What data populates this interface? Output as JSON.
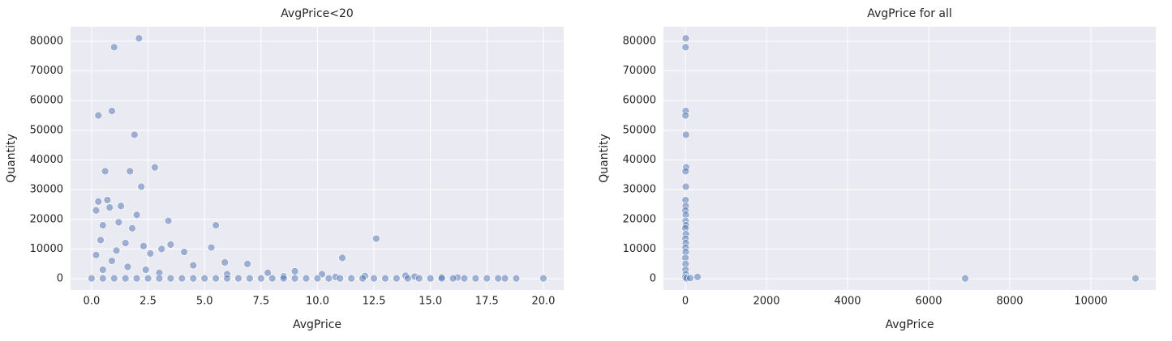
{
  "chart_data": [
    {
      "type": "scatter",
      "title": "AvgPrice<20",
      "x_label": "AvgPrice",
      "y_label": "Quantity",
      "color": "#4c72b0",
      "grid": true,
      "xlim": [
        -0.93,
        20.9
      ],
      "ylim": [
        -3800,
        84900
      ],
      "xticks": [
        {
          "value": 0,
          "label": "0.0"
        },
        2.5,
        {
          "value": 5,
          "label": "5.0"
        },
        7.5,
        {
          "value": 10,
          "label": "10.0"
        },
        12.5,
        {
          "value": 15,
          "label": "15.0"
        },
        17.5,
        {
          "value": 20,
          "label": "20.0"
        }
      ],
      "yticks": [
        0,
        10000,
        20000,
        30000,
        40000,
        50000,
        60000,
        70000,
        80000
      ],
      "x": [
        2.1,
        1.0,
        0.9,
        0.3,
        1.9,
        2.8,
        0.6,
        1.7,
        2.2,
        0.7,
        0.3,
        1.3,
        0.8,
        0.2,
        2.0,
        3.4,
        5.5,
        1.2,
        0.5,
        1.8,
        12.6,
        11.1,
        5.3,
        4.1,
        3.1,
        0.4,
        1.5,
        2.3,
        6.9,
        5.9,
        3.5,
        2.6,
        1.1,
        0.2,
        0.9,
        4.5,
        7.8,
        9.0,
        10.2,
        13.9,
        14.3,
        15.5,
        16.2,
        0.5,
        1.6,
        2.4,
        3.0,
        6.0,
        8.5,
        10.8,
        12.1,
        0.0,
        0.5,
        1.0,
        1.5,
        2.0,
        2.5,
        3.0,
        3.5,
        4.0,
        4.5,
        5.0,
        5.5,
        6.0,
        6.5,
        7.0,
        7.5,
        8.0,
        8.5,
        9.0,
        9.5,
        10.0,
        10.5,
        11.0,
        11.5,
        12.0,
        12.5,
        13.0,
        13.5,
        14.0,
        14.5,
        15.0,
        15.5,
        16.0,
        16.5,
        17.0,
        17.5,
        18.0,
        18.3,
        18.8,
        20.0
      ],
      "y": [
        81000,
        78000,
        56500,
        55000,
        48500,
        37500,
        36200,
        36200,
        31000,
        26500,
        26000,
        24500,
        24000,
        23000,
        21500,
        19500,
        18000,
        19000,
        18000,
        17000,
        13500,
        7000,
        10500,
        9000,
        10000,
        13000,
        12000,
        11000,
        5000,
        5500,
        11500,
        8500,
        9500,
        8000,
        6000,
        4500,
        2000,
        2500,
        1500,
        1000,
        700,
        500,
        400,
        3000,
        4000,
        3000,
        2000,
        1500,
        800,
        600,
        900,
        100,
        100,
        100,
        100,
        100,
        100,
        100,
        100,
        100,
        100,
        100,
        100,
        100,
        100,
        100,
        100,
        100,
        100,
        100,
        100,
        100,
        100,
        100,
        100,
        100,
        100,
        100,
        100,
        100,
        100,
        100,
        100,
        100,
        100,
        100,
        100,
        100,
        100,
        100,
        100
      ]
    },
    {
      "type": "scatter",
      "title": "AvgPrice for all",
      "x_label": "AvgPrice",
      "y_label": "Quantity",
      "color": "#4c72b0",
      "grid": true,
      "xlim": [
        -540,
        11600
      ],
      "ylim": [
        -3800,
        84900
      ],
      "xticks": [
        0,
        2000,
        4000,
        6000,
        8000,
        10000
      ],
      "yticks": [
        0,
        10000,
        20000,
        30000,
        40000,
        50000,
        60000,
        70000,
        80000
      ],
      "x": [
        10,
        5,
        8,
        3,
        15,
        20,
        6,
        12,
        4,
        9,
        2,
        11,
        7,
        14,
        1,
        13,
        3,
        10,
        5,
        8,
        2,
        6,
        4,
        9,
        1,
        30,
        120,
        300,
        6900,
        11100
      ],
      "y": [
        81000,
        78000,
        56500,
        55000,
        48500,
        37500,
        36200,
        31000,
        26500,
        24500,
        23000,
        21500,
        19500,
        18000,
        17000,
        15000,
        13500,
        12000,
        10500,
        9000,
        7000,
        5000,
        3000,
        1500,
        500,
        100,
        200,
        600,
        100,
        100
      ]
    }
  ]
}
